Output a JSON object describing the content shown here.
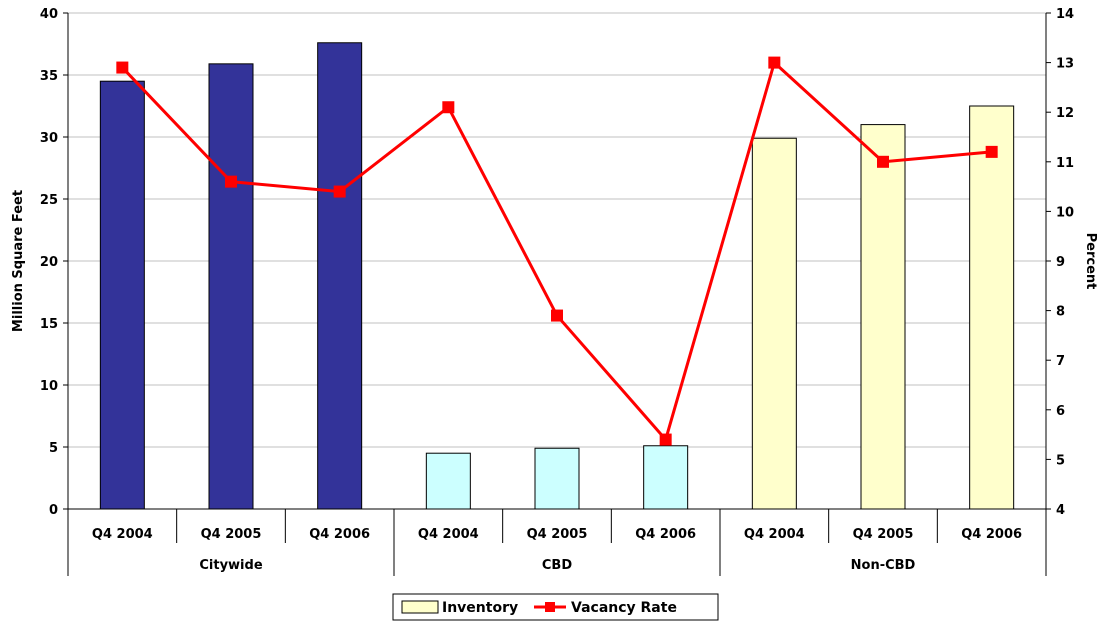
{
  "chart_data": {
    "type": "bar",
    "categories": [
      "Q4 2004",
      "Q4 2005",
      "Q4 2006",
      "Q4 2004",
      "Q4  2005",
      "Q4 2006",
      "Q4 2004",
      "Q4 2005",
      "Q4 2006"
    ],
    "groups": [
      {
        "label": "Citywide",
        "span": 3,
        "color": "#333399"
      },
      {
        "label": "CBD",
        "span": 3,
        "color": "#ccffff"
      },
      {
        "label": "Non-CBD",
        "span": 3,
        "color": "#ffffcc"
      }
    ],
    "series": [
      {
        "name": "Inventory",
        "axis": "left",
        "kind": "bar",
        "color": "#ffffcc",
        "values": [
          34.5,
          35.9,
          37.6,
          4.5,
          4.9,
          5.1,
          29.9,
          31.0,
          32.5
        ]
      },
      {
        "name": "Vacancy Rate",
        "axis": "right",
        "kind": "line",
        "color": "#ff0000",
        "values": [
          12.9,
          10.6,
          10.4,
          12.1,
          7.9,
          5.4,
          13.0,
          11.0,
          11.2
        ]
      }
    ],
    "ylabel": "Million Square Feet",
    "ylim": [
      0,
      40
    ],
    "yticks": [
      "0",
      "5",
      "10",
      "15",
      "20",
      "25",
      "30",
      "35",
      "40"
    ],
    "y2label": "Percent",
    "y2lim": [
      4,
      14
    ],
    "y2ticks": [
      "4",
      "5",
      "6",
      "7",
      "8",
      "9",
      "10",
      "11",
      "12",
      "13",
      "14"
    ],
    "grid": true,
    "legend_position": "bottom"
  }
}
